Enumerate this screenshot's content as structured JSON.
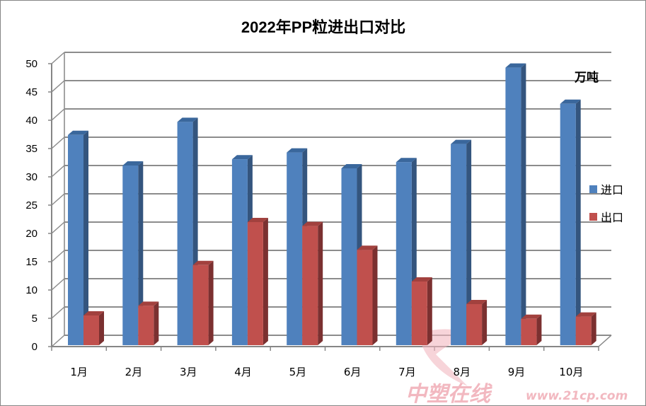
{
  "chart_data": {
    "type": "bar",
    "style": "3d-clustered-column",
    "title": "2022年PP粒进出口对比",
    "unit_label": "万吨",
    "categories": [
      "1月",
      "2月",
      "3月",
      "4月",
      "5月",
      "6月",
      "7月",
      "8月",
      "9月",
      "10月"
    ],
    "series": [
      {
        "name": "进口",
        "color": "#4F81BD",
        "values": [
          37.4,
          32.0,
          39.7,
          33.1,
          34.3,
          31.5,
          32.6,
          35.8,
          49.3,
          42.9
        ]
      },
      {
        "name": "出口",
        "color": "#C0504D",
        "values": [
          5.5,
          7.2,
          14.4,
          22.0,
          21.3,
          17.1,
          11.5,
          7.5,
          4.9,
          5.3
        ]
      }
    ],
    "ylim": [
      0,
      50
    ],
    "yticks": [
      0,
      5,
      10,
      15,
      20,
      25,
      30,
      35,
      40,
      45,
      50
    ],
    "grid": true,
    "legend": "right"
  },
  "watermark": {
    "text": "中塑在线",
    "url": "www.21cp.com"
  }
}
